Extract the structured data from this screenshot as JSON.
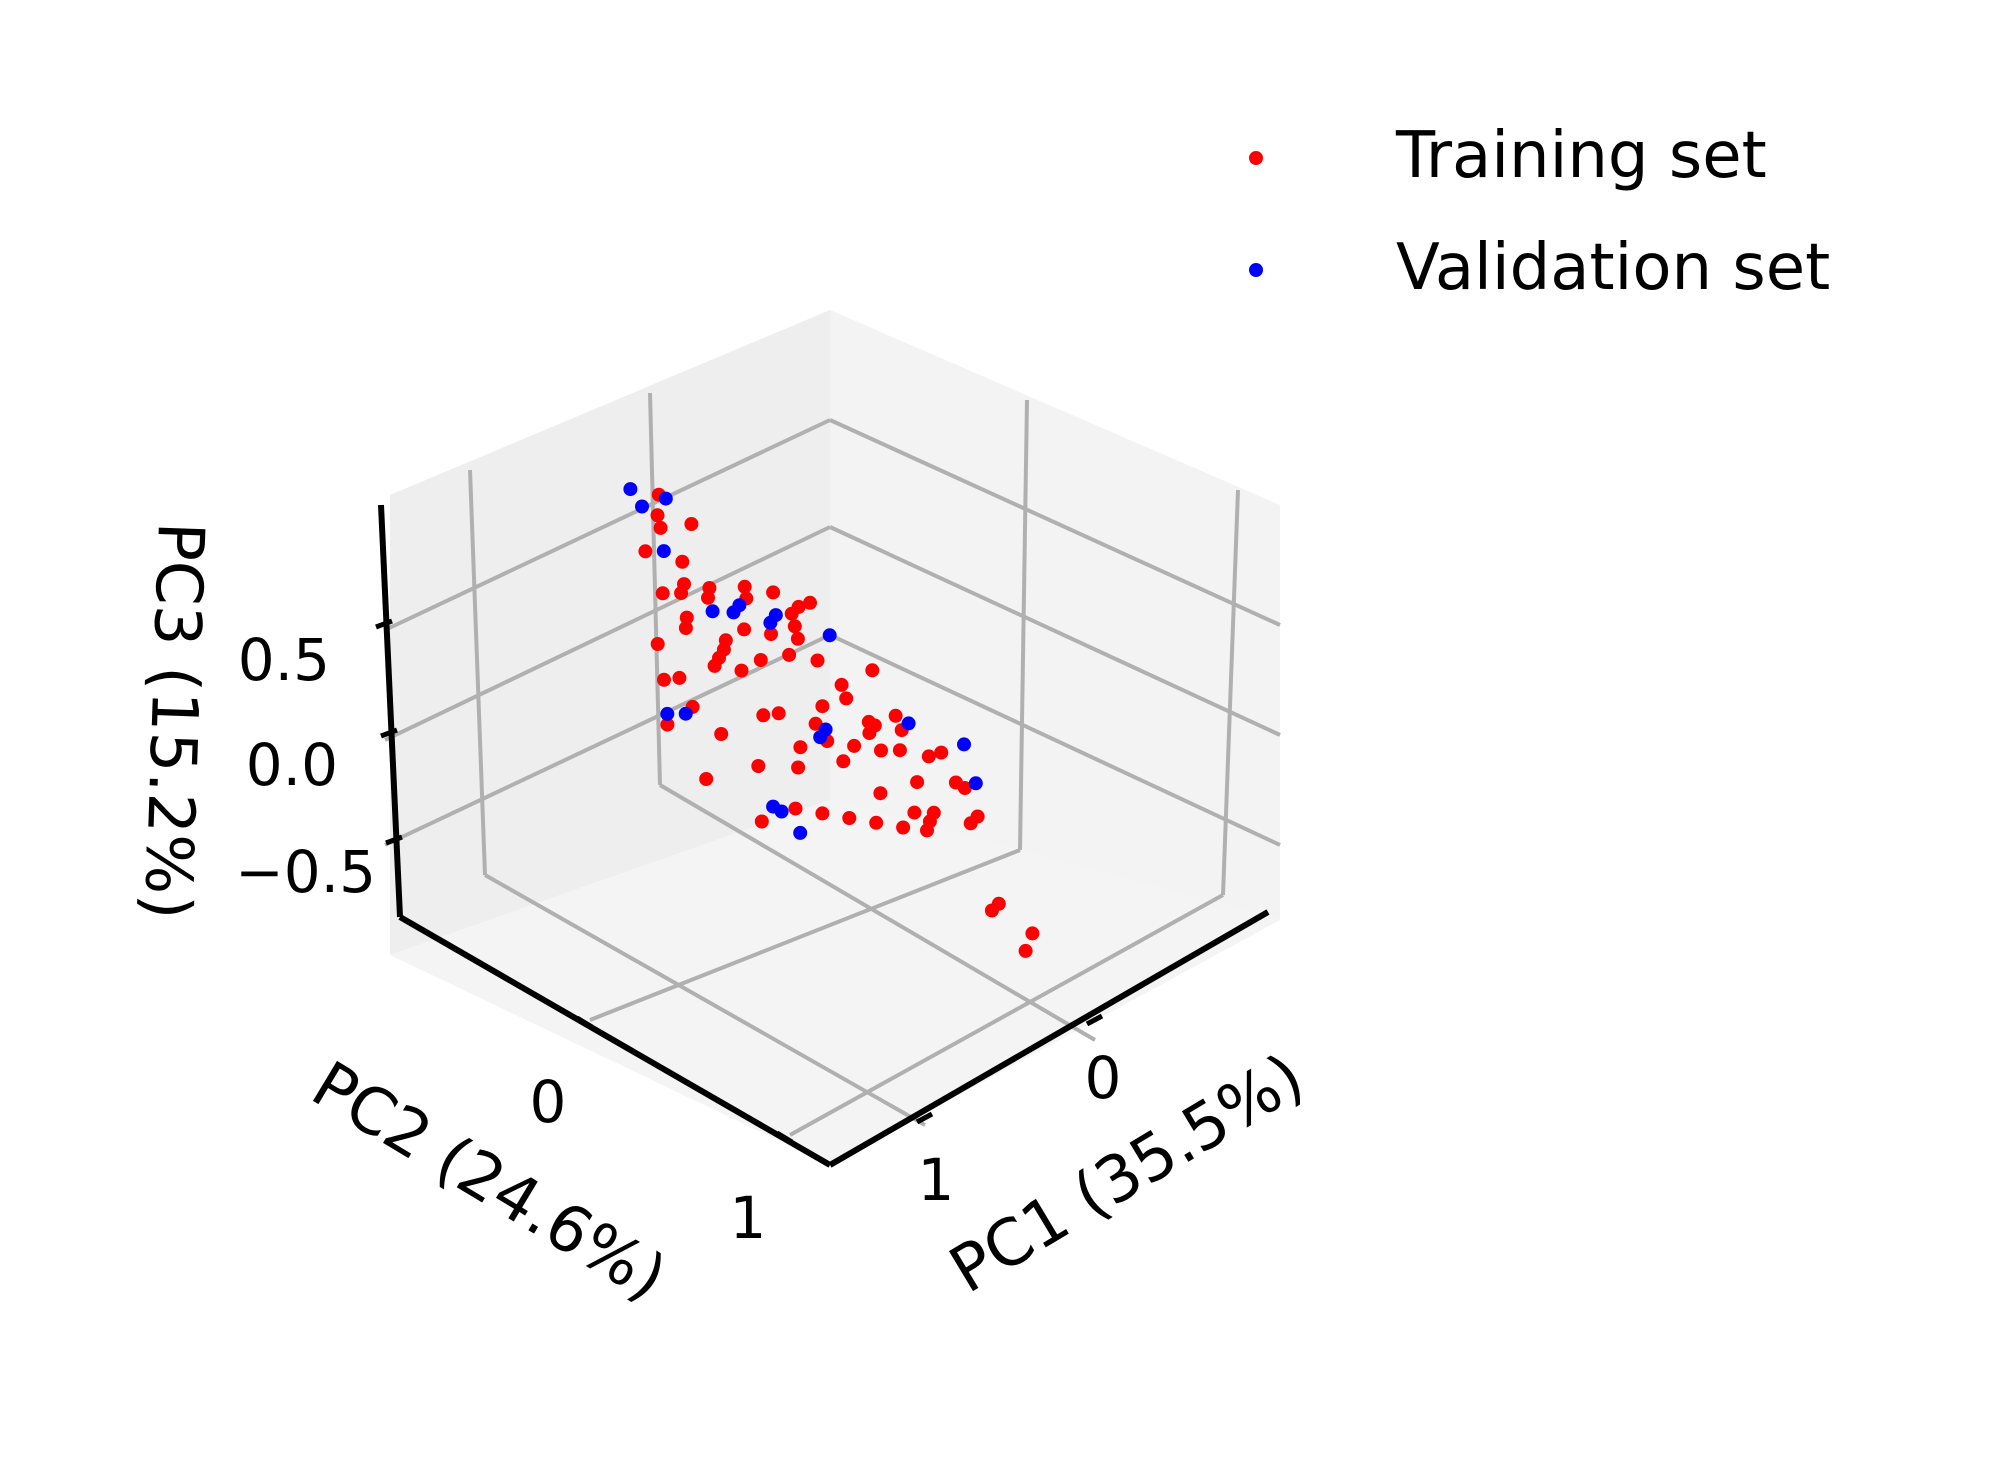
{
  "chart_data": {
    "type": "scatter",
    "projection": "3d",
    "grid": true,
    "legend_position": "top-right",
    "xlabel": "PC1 (35.5%)",
    "ylabel": "PC2 (24.6%)",
    "zlabel": "PC3 (15.2%)",
    "x_ticks": [
      "0",
      "1"
    ],
    "y_ticks": [
      "0",
      "1"
    ],
    "z_ticks": [
      "0.5",
      "0.0",
      "−0.5"
    ],
    "series": [
      {
        "name": "Training set",
        "color": "#ff0000",
        "points": [
          {
            "x": 0.15,
            "y": -0.55,
            "z": 0.55
          },
          {
            "x": 0.25,
            "y": -0.2,
            "z": 0.4
          },
          {
            "x": 0.3,
            "y": -0.15,
            "z": 0.35
          },
          {
            "x": 0.2,
            "y": -0.1,
            "z": 0.45
          },
          {
            "x": 0.1,
            "y": 0.0,
            "z": 0.5
          },
          {
            "x": 0.35,
            "y": -0.3,
            "z": 0.25
          },
          {
            "x": 0.4,
            "y": -0.25,
            "z": 0.3
          },
          {
            "x": 0.45,
            "y": -0.35,
            "z": 0.2
          },
          {
            "x": 0.5,
            "y": -0.4,
            "z": 0.15
          },
          {
            "x": 0.3,
            "y": -0.45,
            "z": 0.1
          },
          {
            "x": 0.2,
            "y": -0.35,
            "z": 0.05
          },
          {
            "x": 0.1,
            "y": -0.25,
            "z": 0.1
          },
          {
            "x": 0.05,
            "y": -0.15,
            "z": 0.2
          },
          {
            "x": 0.0,
            "y": -0.05,
            "z": 0.25
          },
          {
            "x": -0.05,
            "y": 0.05,
            "z": 0.15
          },
          {
            "x": 0.15,
            "y": 0.1,
            "z": 0.05
          },
          {
            "x": 0.25,
            "y": 0.15,
            "z": -0.05
          },
          {
            "x": 0.35,
            "y": 0.05,
            "z": -0.1
          },
          {
            "x": 0.45,
            "y": -0.05,
            "z": 0.0
          },
          {
            "x": 0.55,
            "y": -0.1,
            "z": -0.05
          },
          {
            "x": 0.6,
            "y": -0.2,
            "z": 0.05
          },
          {
            "x": 0.65,
            "y": -0.3,
            "z": -0.1
          },
          {
            "x": 0.7,
            "y": -0.15,
            "z": -0.2
          },
          {
            "x": 0.5,
            "y": 0.1,
            "z": -0.15
          },
          {
            "x": 0.4,
            "y": 0.2,
            "z": -0.2
          },
          {
            "x": 0.3,
            "y": 0.25,
            "z": -0.1
          },
          {
            "x": 0.2,
            "y": 0.3,
            "z": -0.05
          },
          {
            "x": 0.1,
            "y": 0.35,
            "z": 0.0
          },
          {
            "x": 0.05,
            "y": 0.25,
            "z": 0.05
          },
          {
            "x": -0.1,
            "y": 0.15,
            "z": 0.1
          },
          {
            "x": -0.2,
            "y": 0.2,
            "z": 0.15
          },
          {
            "x": -0.3,
            "y": 0.25,
            "z": 0.1
          },
          {
            "x": -0.4,
            "y": 0.3,
            "z": 0.05
          },
          {
            "x": -0.35,
            "y": 0.45,
            "z": -0.05
          },
          {
            "x": -0.25,
            "y": 0.5,
            "z": -0.1
          },
          {
            "x": -0.15,
            "y": 0.4,
            "z": -0.15
          },
          {
            "x": -0.05,
            "y": 0.45,
            "z": -0.25
          },
          {
            "x": 0.05,
            "y": 0.55,
            "z": -0.2
          },
          {
            "x": 0.15,
            "y": 0.5,
            "z": -0.3
          },
          {
            "x": 0.25,
            "y": 0.45,
            "z": -0.35
          },
          {
            "x": 0.35,
            "y": 0.4,
            "z": -0.4
          },
          {
            "x": 0.45,
            "y": 0.35,
            "z": -0.45
          },
          {
            "x": 0.55,
            "y": 0.3,
            "z": -0.5
          },
          {
            "x": 0.65,
            "y": 0.2,
            "z": -0.4
          },
          {
            "x": 0.75,
            "y": 0.1,
            "z": -0.35
          },
          {
            "x": 0.8,
            "y": 0.0,
            "z": -0.3
          },
          {
            "x": 0.85,
            "y": -0.1,
            "z": -0.25
          },
          {
            "x": 0.7,
            "y": 0.05,
            "z": 0.0
          },
          {
            "x": 0.6,
            "y": 0.0,
            "z": 0.1
          },
          {
            "x": 0.55,
            "y": 0.05,
            "z": 0.2
          },
          {
            "x": 0.45,
            "y": 0.1,
            "z": 0.25
          },
          {
            "x": 0.35,
            "y": 0.15,
            "z": 0.3
          },
          {
            "x": 0.25,
            "y": 0.05,
            "z": 0.35
          },
          {
            "x": 0.15,
            "y": -0.05,
            "z": 0.4
          },
          {
            "x": 0.05,
            "y": -0.1,
            "z": 0.45
          },
          {
            "x": 0.35,
            "y": -0.55,
            "z": 0.5
          },
          {
            "x": 0.4,
            "y": -0.5,
            "z": 0.6
          },
          {
            "x": 0.45,
            "y": -0.45,
            "z": 0.45
          },
          {
            "x": 0.5,
            "y": -0.3,
            "z": 0.35
          },
          {
            "x": 0.55,
            "y": -0.25,
            "z": 0.25
          },
          {
            "x": 0.6,
            "y": -0.4,
            "z": 0.3
          },
          {
            "x": -0.2,
            "y": -0.1,
            "z": 0.2
          },
          {
            "x": -0.3,
            "y": -0.05,
            "z": 0.1
          },
          {
            "x": -0.4,
            "y": 0.0,
            "z": 0.2
          },
          {
            "x": -0.55,
            "y": 0.1,
            "z": 0.15
          },
          {
            "x": -0.5,
            "y": -0.2,
            "z": 0.35
          },
          {
            "x": -0.6,
            "y": -0.15,
            "z": 0.05
          },
          {
            "x": -0.45,
            "y": 0.6,
            "z": -0.55
          },
          {
            "x": -0.55,
            "y": 0.55,
            "z": -0.45
          },
          {
            "x": 0.1,
            "y": 0.9,
            "z": -0.45
          },
          {
            "x": 0.0,
            "y": 0.85,
            "z": -0.4
          },
          {
            "x": 0.75,
            "y": 0.3,
            "z": -0.65
          },
          {
            "x": 0.9,
            "y": 0.15,
            "z": -0.6
          },
          {
            "x": 0.95,
            "y": 0.0,
            "z": -0.45
          },
          {
            "x": 0.2,
            "y": 0.6,
            "z": -0.2
          },
          {
            "x": 0.3,
            "y": 0.7,
            "z": -0.05
          },
          {
            "x": 0.4,
            "y": 0.6,
            "z": -0.2
          },
          {
            "x": 0.5,
            "y": 0.5,
            "z": -0.15
          },
          {
            "x": -0.1,
            "y": 0.6,
            "z": 0.05
          },
          {
            "x": 0.65,
            "y": 0.4,
            "z": -0.3
          }
        ]
      },
      {
        "name": "Validation set",
        "color": "#0000ff",
        "points": [
          {
            "x": 0.3,
            "y": -0.55,
            "z": 0.6
          },
          {
            "x": 0.45,
            "y": -0.6,
            "z": 0.55
          },
          {
            "x": 0.5,
            "y": -0.5,
            "z": 0.5
          },
          {
            "x": 0.55,
            "y": -0.35,
            "z": 0.35
          },
          {
            "x": 0.2,
            "y": -0.3,
            "z": 0.25
          },
          {
            "x": -0.05,
            "y": -0.3,
            "z": 0.35
          },
          {
            "x": -0.25,
            "y": -0.2,
            "z": 0.4
          },
          {
            "x": 0.1,
            "y": -0.2,
            "z": 0.3
          },
          {
            "x": 0.4,
            "y": -0.1,
            "z": 0.3
          },
          {
            "x": 0.5,
            "y": -0.15,
            "z": 0.2
          },
          {
            "x": -0.3,
            "y": 0.15,
            "z": 0.2
          },
          {
            "x": -0.45,
            "y": 0.3,
            "z": 0.25
          },
          {
            "x": -0.4,
            "y": 0.4,
            "z": 0.1
          },
          {
            "x": 0.25,
            "y": 0.2,
            "z": -0.05
          },
          {
            "x": 0.4,
            "y": 0.3,
            "z": -0.1
          },
          {
            "x": 0.9,
            "y": 0.05,
            "z": -0.35
          },
          {
            "x": 0.95,
            "y": 0.0,
            "z": -0.4
          },
          {
            "x": 0.8,
            "y": 0.4,
            "z": -0.55
          },
          {
            "x": 0.7,
            "y": 0.45,
            "z": -0.6
          },
          {
            "x": 0.75,
            "y": 0.4,
            "z": -0.55
          }
        ]
      }
    ]
  }
}
